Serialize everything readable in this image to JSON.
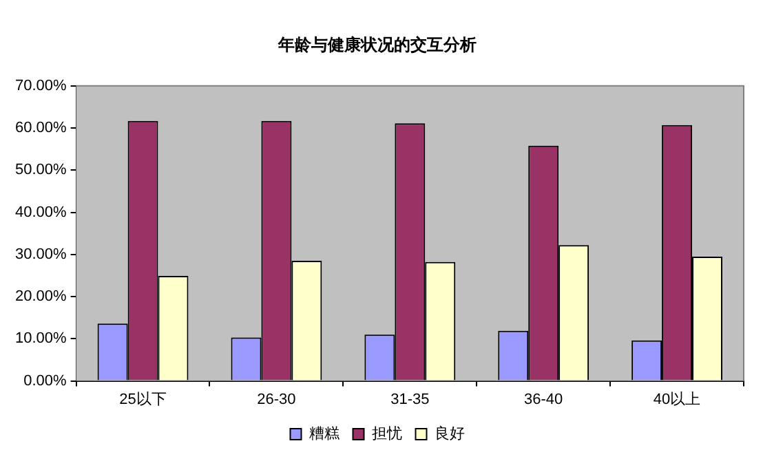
{
  "chart_data": {
    "type": "bar",
    "title": "年龄与健康状况的交互分析",
    "categories": [
      "25以下",
      "26-30",
      "31-35",
      "36-40",
      "40以上"
    ],
    "series": [
      {
        "name": "糟糕",
        "color": "#9999ff",
        "values": [
          13.6,
          10.3,
          11.0,
          11.9,
          9.6
        ]
      },
      {
        "name": "担忧",
        "color": "#993366",
        "values": [
          61.7,
          61.7,
          61.1,
          55.8,
          60.7
        ]
      },
      {
        "name": "良好",
        "color": "#ffffcc",
        "values": [
          24.9,
          28.5,
          28.2,
          32.2,
          29.5
        ]
      }
    ],
    "ylim": [
      0,
      70
    ],
    "yticks": [
      {
        "value": 0,
        "label": "0.00%"
      },
      {
        "value": 10,
        "label": "10.00%"
      },
      {
        "value": 20,
        "label": "20.00%"
      },
      {
        "value": 30,
        "label": "30.00%"
      },
      {
        "value": 40,
        "label": "40.00%"
      },
      {
        "value": 50,
        "label": "50.00%"
      },
      {
        "value": 60,
        "label": "60.00%"
      },
      {
        "value": 70,
        "label": "70.00%"
      }
    ],
    "legend": "bottom"
  }
}
